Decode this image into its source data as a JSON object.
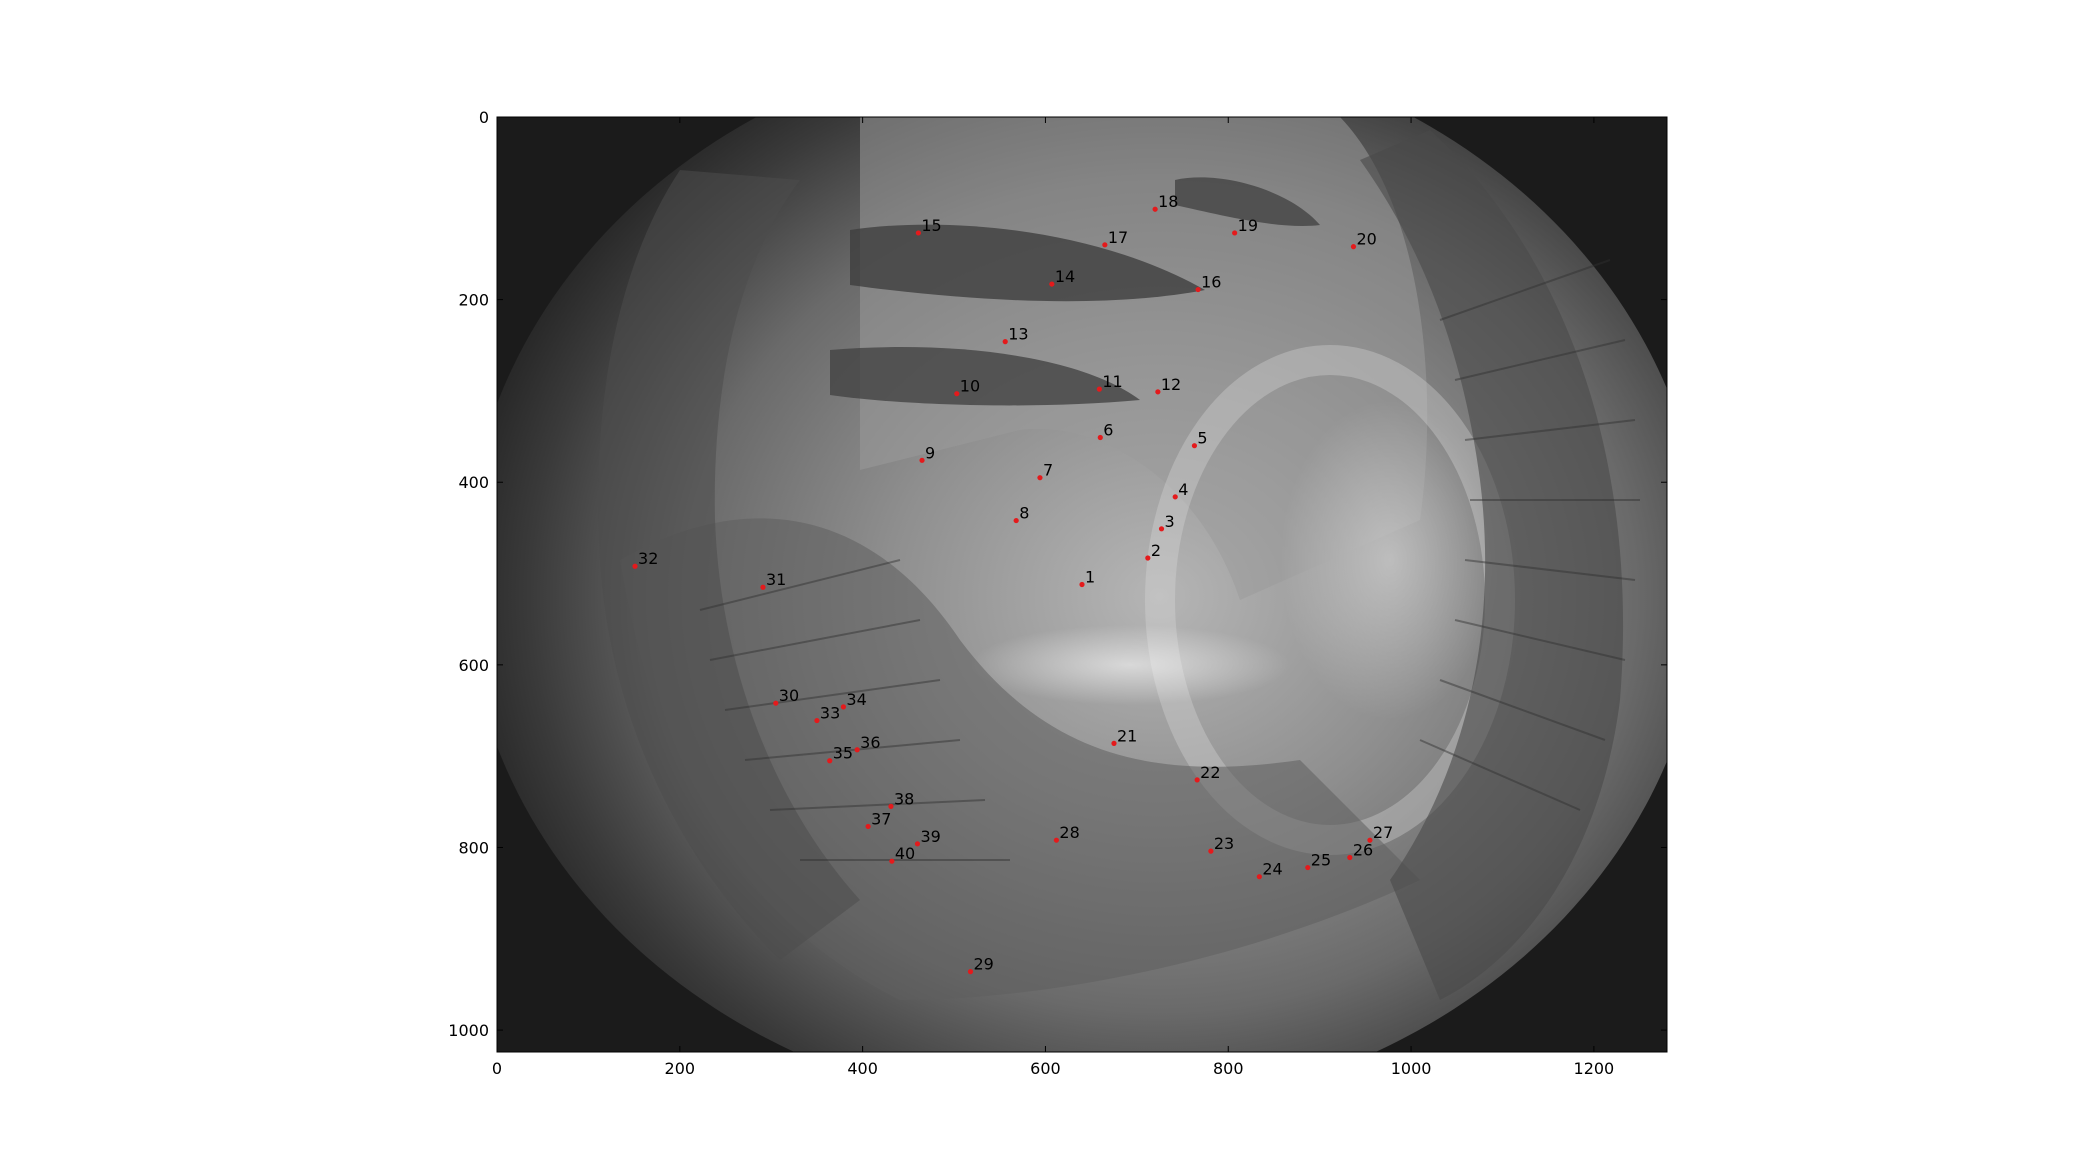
{
  "chart_data": {
    "type": "scatter",
    "title": "",
    "xlabel": "",
    "ylabel": "",
    "xlim": [
      0,
      1280
    ],
    "ylim": [
      1024,
      0
    ],
    "x_ticks": [
      "0",
      "200",
      "400",
      "600",
      "800",
      "1000",
      "1200"
    ],
    "y_ticks": [
      "0",
      "200",
      "400",
      "600",
      "800",
      "1000"
    ],
    "marker_color": "#e41a1c",
    "background": "grayscale camera image",
    "points": [
      {
        "label": "1",
        "x": 640,
        "y": 512
      },
      {
        "label": "2",
        "x": 712,
        "y": 483
      },
      {
        "label": "3",
        "x": 727,
        "y": 451
      },
      {
        "label": "4",
        "x": 742,
        "y": 416
      },
      {
        "label": "5",
        "x": 763,
        "y": 360
      },
      {
        "label": "6",
        "x": 660,
        "y": 351
      },
      {
        "label": "7",
        "x": 594,
        "y": 395
      },
      {
        "label": "8",
        "x": 568,
        "y": 442
      },
      {
        "label": "9",
        "x": 465,
        "y": 376
      },
      {
        "label": "10",
        "x": 503,
        "y": 303
      },
      {
        "label": "11",
        "x": 659,
        "y": 298
      },
      {
        "label": "12",
        "x": 723,
        "y": 301
      },
      {
        "label": "13",
        "x": 556,
        "y": 246
      },
      {
        "label": "14",
        "x": 607,
        "y": 183
      },
      {
        "label": "15",
        "x": 461,
        "y": 127
      },
      {
        "label": "16",
        "x": 767,
        "y": 189
      },
      {
        "label": "17",
        "x": 665,
        "y": 140
      },
      {
        "label": "18",
        "x": 720,
        "y": 101
      },
      {
        "label": "19",
        "x": 807,
        "y": 127
      },
      {
        "label": "20",
        "x": 937,
        "y": 142
      },
      {
        "label": "21",
        "x": 675,
        "y": 686
      },
      {
        "label": "22",
        "x": 766,
        "y": 726
      },
      {
        "label": "23",
        "x": 781,
        "y": 804
      },
      {
        "label": "24",
        "x": 834,
        "y": 832
      },
      {
        "label": "25",
        "x": 887,
        "y": 822
      },
      {
        "label": "26",
        "x": 933,
        "y": 811
      },
      {
        "label": "27",
        "x": 955,
        "y": 792
      },
      {
        "label": "28",
        "x": 612,
        "y": 792
      },
      {
        "label": "29",
        "x": 518,
        "y": 936
      },
      {
        "label": "30",
        "x": 305,
        "y": 642
      },
      {
        "label": "31",
        "x": 291,
        "y": 515
      },
      {
        "label": "32",
        "x": 151,
        "y": 492
      },
      {
        "label": "33",
        "x": 350,
        "y": 661
      },
      {
        "label": "34",
        "x": 379,
        "y": 646
      },
      {
        "label": "35",
        "x": 364,
        "y": 705
      },
      {
        "label": "36",
        "x": 394,
        "y": 693
      },
      {
        "label": "37",
        "x": 406,
        "y": 777
      },
      {
        "label": "38",
        "x": 431,
        "y": 755
      },
      {
        "label": "39",
        "x": 460,
        "y": 796
      },
      {
        "label": "40",
        "x": 432,
        "y": 815
      }
    ]
  }
}
